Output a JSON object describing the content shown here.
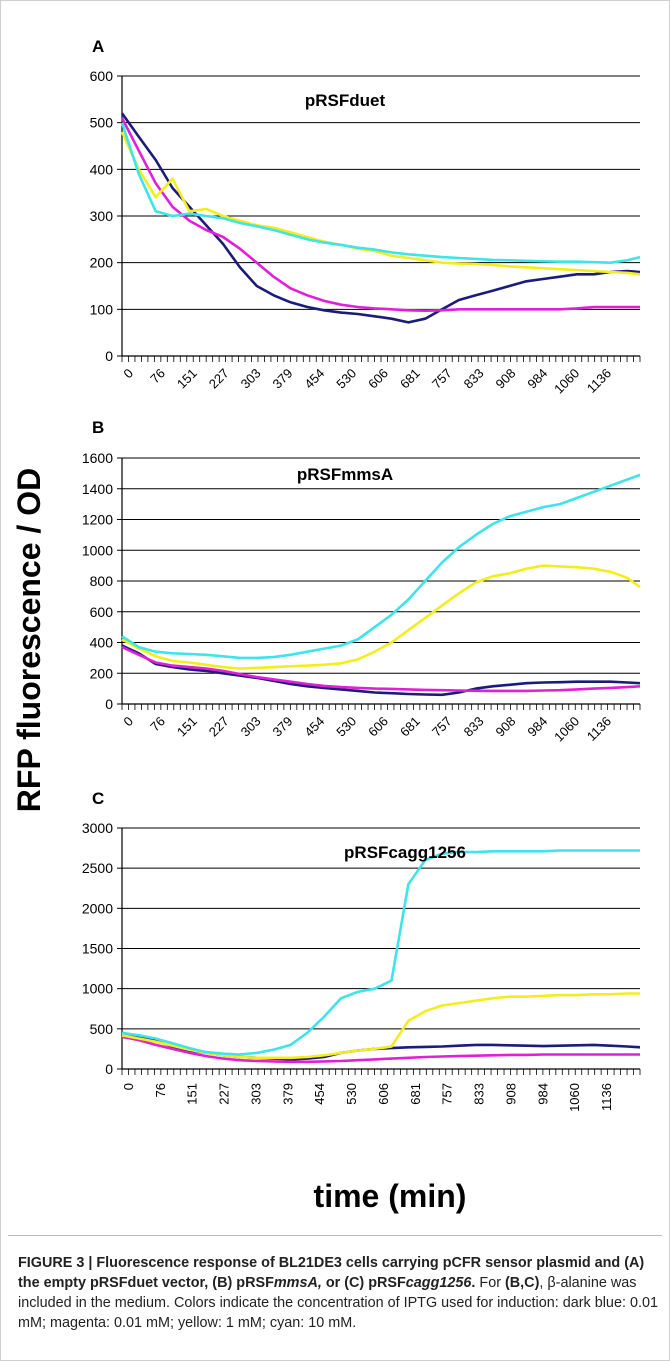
{
  "figure": {
    "ylabel": "RFP fluorescence / OD",
    "xlabel": "time (min)",
    "caption": {
      "bold_parts": [
        "FIGURE 3 | Fluorescence response of BL21DE3 cells carrying pCFR sensor plasmid and (A) the empty pRSFduet vector, (B) pRSF",
        "mmsA,",
        " or (C) pRSF",
        "cagg1256",
        ".",
        " For ",
        "(B,C)",
        ", β-alanine was included in the medium. Colors indicate the concentration of IPTG used for induction: dark blue: 0.01 mM; magenta: 0.01 mM; yellow: 1 mM; cyan: 10 mM."
      ]
    }
  },
  "colors": {
    "dark_blue": "#1b1b7a",
    "magenta": "#e020d8",
    "yellow": "#f2ee1e",
    "cyan": "#3fe3ea"
  },
  "chart_data": [
    {
      "panel": "A",
      "type": "line",
      "title": "pRSFduet",
      "ylim": [
        0,
        600
      ],
      "yticks": [
        0,
        100,
        200,
        300,
        400,
        500,
        600
      ],
      "x_tick_labels": [
        "0",
        "76",
        "151",
        "227",
        "303",
        "379",
        "454",
        "530",
        "606",
        "681",
        "757",
        "833",
        "908",
        "984",
        "1060",
        "1136"
      ],
      "xlim": [
        0,
        1230
      ],
      "grid": true,
      "series": [
        {
          "color": "dark_blue",
          "x": [
            0,
            40,
            80,
            120,
            160,
            200,
            240,
            280,
            320,
            360,
            400,
            440,
            480,
            520,
            560,
            600,
            640,
            680,
            720,
            760,
            800,
            840,
            880,
            920,
            960,
            1000,
            1040,
            1080,
            1120,
            1160,
            1200,
            1230
          ],
          "y": [
            520,
            470,
            420,
            360,
            320,
            280,
            240,
            190,
            150,
            130,
            115,
            105,
            98,
            93,
            90,
            85,
            80,
            72,
            80,
            100,
            120,
            130,
            140,
            150,
            160,
            165,
            170,
            175,
            175,
            180,
            182,
            180
          ]
        },
        {
          "color": "magenta",
          "x": [
            0,
            40,
            80,
            120,
            160,
            200,
            240,
            280,
            320,
            360,
            400,
            440,
            480,
            520,
            560,
            600,
            640,
            680,
            720,
            760,
            800,
            840,
            880,
            920,
            960,
            1000,
            1040,
            1080,
            1120,
            1160,
            1200,
            1230
          ],
          "y": [
            510,
            440,
            370,
            320,
            290,
            270,
            255,
            230,
            200,
            170,
            145,
            130,
            118,
            110,
            105,
            102,
            100,
            98,
            97,
            98,
            100,
            100,
            100,
            100,
            100,
            100,
            100,
            102,
            105,
            105,
            105,
            105
          ]
        },
        {
          "color": "yellow",
          "x": [
            0,
            40,
            80,
            120,
            160,
            200,
            240,
            280,
            320,
            360,
            400,
            440,
            480,
            520,
            560,
            600,
            640,
            680,
            720,
            760,
            800,
            840,
            880,
            920,
            960,
            1000,
            1040,
            1080,
            1120,
            1160,
            1200,
            1230
          ],
          "y": [
            480,
            400,
            340,
            380,
            310,
            315,
            300,
            290,
            280,
            275,
            265,
            255,
            245,
            238,
            230,
            225,
            215,
            210,
            205,
            200,
            198,
            197,
            195,
            192,
            190,
            188,
            186,
            184,
            182,
            180,
            178,
            175
          ]
        },
        {
          "color": "cyan",
          "x": [
            0,
            40,
            80,
            120,
            160,
            200,
            240,
            280,
            320,
            360,
            400,
            440,
            480,
            520,
            560,
            600,
            640,
            680,
            720,
            760,
            800,
            840,
            880,
            920,
            960,
            1000,
            1040,
            1080,
            1120,
            1160,
            1200,
            1230
          ],
          "y": [
            500,
            390,
            310,
            300,
            305,
            300,
            295,
            285,
            278,
            270,
            260,
            250,
            243,
            238,
            232,
            228,
            222,
            218,
            215,
            212,
            210,
            208,
            206,
            205,
            204,
            203,
            202,
            202,
            201,
            200,
            205,
            212
          ]
        }
      ]
    },
    {
      "panel": "B",
      "type": "line",
      "title": "pRSFmmsA",
      "ylim": [
        0,
        1600
      ],
      "yticks": [
        0,
        200,
        400,
        600,
        800,
        1000,
        1200,
        1400,
        1600
      ],
      "x_tick_labels": [
        "0",
        "76",
        "151",
        "227",
        "303",
        "379",
        "454",
        "530",
        "606",
        "681",
        "757",
        "833",
        "908",
        "984",
        "1060",
        "1136"
      ],
      "xlim": [
        0,
        1230
      ],
      "grid": true,
      "series": [
        {
          "color": "dark_blue",
          "x": [
            0,
            40,
            80,
            120,
            160,
            200,
            240,
            280,
            320,
            360,
            400,
            440,
            480,
            520,
            560,
            600,
            640,
            680,
            720,
            760,
            800,
            840,
            880,
            920,
            960,
            1000,
            1040,
            1080,
            1120,
            1160,
            1200,
            1230
          ],
          "y": [
            380,
            330,
            260,
            240,
            225,
            215,
            200,
            185,
            170,
            150,
            130,
            115,
            105,
            95,
            85,
            75,
            70,
            65,
            62,
            60,
            75,
            100,
            115,
            125,
            135,
            140,
            142,
            145,
            145,
            145,
            140,
            135
          ]
        },
        {
          "color": "magenta",
          "x": [
            0,
            40,
            80,
            120,
            160,
            200,
            240,
            280,
            320,
            360,
            400,
            440,
            480,
            520,
            560,
            600,
            640,
            680,
            720,
            760,
            800,
            840,
            880,
            920,
            960,
            1000,
            1040,
            1080,
            1120,
            1160,
            1200,
            1230
          ],
          "y": [
            370,
            320,
            270,
            250,
            240,
            230,
            215,
            195,
            175,
            160,
            145,
            130,
            118,
            110,
            105,
            100,
            98,
            95,
            92,
            90,
            88,
            86,
            85,
            85,
            85,
            88,
            90,
            95,
            100,
            105,
            110,
            115
          ]
        },
        {
          "color": "yellow",
          "x": [
            0,
            40,
            80,
            120,
            160,
            200,
            240,
            280,
            320,
            360,
            400,
            440,
            480,
            520,
            560,
            600,
            640,
            680,
            720,
            760,
            800,
            840,
            880,
            920,
            960,
            1000,
            1040,
            1080,
            1120,
            1160,
            1200,
            1230
          ],
          "y": [
            420,
            360,
            310,
            280,
            270,
            255,
            240,
            230,
            235,
            240,
            245,
            250,
            255,
            265,
            290,
            340,
            400,
            480,
            560,
            640,
            720,
            790,
            830,
            850,
            880,
            900,
            895,
            890,
            880,
            860,
            820,
            760
          ]
        },
        {
          "color": "cyan",
          "x": [
            0,
            40,
            80,
            120,
            160,
            200,
            240,
            280,
            320,
            360,
            400,
            440,
            480,
            520,
            560,
            600,
            640,
            680,
            720,
            760,
            800,
            840,
            880,
            920,
            960,
            1000,
            1040,
            1080,
            1120,
            1160,
            1200,
            1230
          ],
          "y": [
            440,
            370,
            340,
            330,
            325,
            320,
            310,
            300,
            300,
            305,
            320,
            340,
            360,
            380,
            420,
            500,
            580,
            680,
            800,
            920,
            1020,
            1100,
            1170,
            1220,
            1250,
            1280,
            1300,
            1340,
            1380,
            1420,
            1460,
            1490
          ]
        }
      ]
    },
    {
      "panel": "C",
      "type": "line",
      "title": "pRSFcagg1256",
      "ylim": [
        0,
        3000
      ],
      "yticks": [
        0,
        500,
        1000,
        1500,
        2000,
        2500,
        3000
      ],
      "x_tick_labels": [
        "0",
        "76",
        "151",
        "227",
        "303",
        "379",
        "454",
        "530",
        "606",
        "681",
        "757",
        "833",
        "908",
        "984",
        "1060",
        "1136"
      ],
      "xlim": [
        0,
        1230
      ],
      "grid": true,
      "series": [
        {
          "color": "dark_blue",
          "x": [
            0,
            40,
            80,
            120,
            160,
            200,
            240,
            280,
            320,
            360,
            400,
            440,
            480,
            520,
            560,
            600,
            640,
            680,
            720,
            760,
            800,
            840,
            880,
            920,
            960,
            1000,
            1040,
            1080,
            1120,
            1160,
            1200,
            1230
          ],
          "y": [
            450,
            400,
            350,
            280,
            230,
            200,
            170,
            150,
            140,
            130,
            120,
            130,
            150,
            200,
            230,
            250,
            260,
            270,
            275,
            280,
            290,
            300,
            300,
            295,
            290,
            285,
            290,
            295,
            300,
            290,
            280,
            270
          ]
        },
        {
          "color": "magenta",
          "x": [
            0,
            40,
            80,
            120,
            160,
            200,
            240,
            280,
            320,
            360,
            400,
            440,
            480,
            520,
            560,
            600,
            640,
            680,
            720,
            760,
            800,
            840,
            880,
            920,
            960,
            1000,
            1040,
            1080,
            1120,
            1160,
            1200,
            1230
          ],
          "y": [
            400,
            360,
            300,
            250,
            200,
            160,
            130,
            110,
            100,
            95,
            90,
            90,
            95,
            100,
            110,
            120,
            130,
            140,
            150,
            155,
            160,
            165,
            170,
            175,
            175,
            180,
            180,
            180,
            180,
            180,
            180,
            180
          ]
        },
        {
          "color": "yellow",
          "x": [
            0,
            40,
            80,
            120,
            160,
            200,
            240,
            280,
            320,
            360,
            400,
            440,
            480,
            520,
            560,
            600,
            640,
            680,
            720,
            760,
            800,
            840,
            880,
            920,
            960,
            1000,
            1040,
            1080,
            1120,
            1160,
            1200,
            1230
          ],
          "y": [
            420,
            380,
            340,
            290,
            240,
            200,
            170,
            150,
            140,
            140,
            140,
            150,
            170,
            200,
            230,
            250,
            280,
            600,
            720,
            790,
            820,
            850,
            880,
            900,
            900,
            910,
            920,
            920,
            930,
            930,
            940,
            940
          ]
        },
        {
          "color": "cyan",
          "x": [
            0,
            40,
            80,
            120,
            160,
            200,
            240,
            280,
            320,
            360,
            400,
            440,
            480,
            520,
            560,
            600,
            640,
            680,
            720,
            760,
            800,
            840,
            880,
            920,
            960,
            1000,
            1040,
            1080,
            1120,
            1160,
            1200,
            1230
          ],
          "y": [
            450,
            420,
            380,
            320,
            260,
            210,
            190,
            180,
            200,
            240,
            300,
            450,
            650,
            880,
            960,
            1000,
            1100,
            2300,
            2600,
            2680,
            2700,
            2700,
            2710,
            2710,
            2710,
            2710,
            2720,
            2720,
            2720,
            2720,
            2720,
            2720
          ]
        }
      ]
    }
  ]
}
